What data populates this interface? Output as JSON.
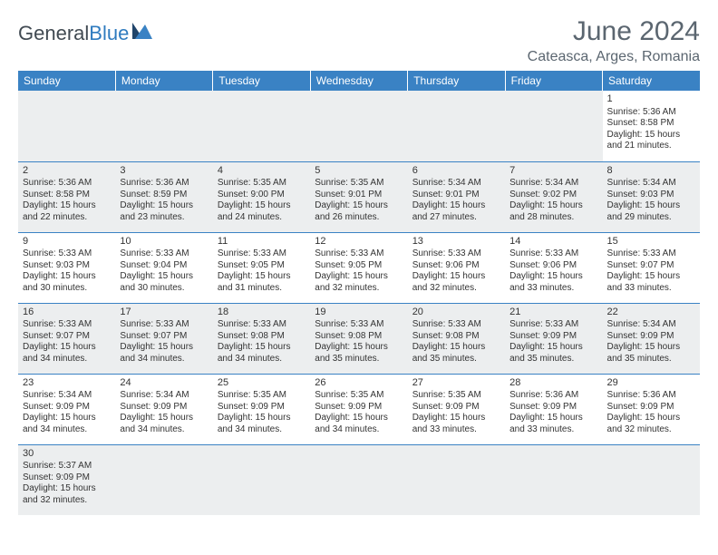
{
  "logo": {
    "text1": "General",
    "text2": "Blue"
  },
  "title": "June 2024",
  "location": "Cateasca, Arges, Romania",
  "colors": {
    "header_bg": "#3a82c4",
    "header_text": "#ffffff",
    "grey_row": "#eceeef",
    "border": "#3a82c4",
    "title_color": "#5b6670",
    "logo_grey": "#414a52",
    "logo_blue": "#2f7bbf"
  },
  "day_headers": [
    "Sunday",
    "Monday",
    "Tuesday",
    "Wednesday",
    "Thursday",
    "Friday",
    "Saturday"
  ],
  "weeks": [
    [
      null,
      null,
      null,
      null,
      null,
      null,
      {
        "n": "1",
        "sr": "5:36 AM",
        "ss": "8:58 PM",
        "dl": "15 hours and 21 minutes."
      }
    ],
    [
      {
        "n": "2",
        "sr": "5:36 AM",
        "ss": "8:58 PM",
        "dl": "15 hours and 22 minutes."
      },
      {
        "n": "3",
        "sr": "5:36 AM",
        "ss": "8:59 PM",
        "dl": "15 hours and 23 minutes."
      },
      {
        "n": "4",
        "sr": "5:35 AM",
        "ss": "9:00 PM",
        "dl": "15 hours and 24 minutes."
      },
      {
        "n": "5",
        "sr": "5:35 AM",
        "ss": "9:01 PM",
        "dl": "15 hours and 26 minutes."
      },
      {
        "n": "6",
        "sr": "5:34 AM",
        "ss": "9:01 PM",
        "dl": "15 hours and 27 minutes."
      },
      {
        "n": "7",
        "sr": "5:34 AM",
        "ss": "9:02 PM",
        "dl": "15 hours and 28 minutes."
      },
      {
        "n": "8",
        "sr": "5:34 AM",
        "ss": "9:03 PM",
        "dl": "15 hours and 29 minutes."
      }
    ],
    [
      {
        "n": "9",
        "sr": "5:33 AM",
        "ss": "9:03 PM",
        "dl": "15 hours and 30 minutes."
      },
      {
        "n": "10",
        "sr": "5:33 AM",
        "ss": "9:04 PM",
        "dl": "15 hours and 30 minutes."
      },
      {
        "n": "11",
        "sr": "5:33 AM",
        "ss": "9:05 PM",
        "dl": "15 hours and 31 minutes."
      },
      {
        "n": "12",
        "sr": "5:33 AM",
        "ss": "9:05 PM",
        "dl": "15 hours and 32 minutes."
      },
      {
        "n": "13",
        "sr": "5:33 AM",
        "ss": "9:06 PM",
        "dl": "15 hours and 32 minutes."
      },
      {
        "n": "14",
        "sr": "5:33 AM",
        "ss": "9:06 PM",
        "dl": "15 hours and 33 minutes."
      },
      {
        "n": "15",
        "sr": "5:33 AM",
        "ss": "9:07 PM",
        "dl": "15 hours and 33 minutes."
      }
    ],
    [
      {
        "n": "16",
        "sr": "5:33 AM",
        "ss": "9:07 PM",
        "dl": "15 hours and 34 minutes."
      },
      {
        "n": "17",
        "sr": "5:33 AM",
        "ss": "9:07 PM",
        "dl": "15 hours and 34 minutes."
      },
      {
        "n": "18",
        "sr": "5:33 AM",
        "ss": "9:08 PM",
        "dl": "15 hours and 34 minutes."
      },
      {
        "n": "19",
        "sr": "5:33 AM",
        "ss": "9:08 PM",
        "dl": "15 hours and 35 minutes."
      },
      {
        "n": "20",
        "sr": "5:33 AM",
        "ss": "9:08 PM",
        "dl": "15 hours and 35 minutes."
      },
      {
        "n": "21",
        "sr": "5:33 AM",
        "ss": "9:09 PM",
        "dl": "15 hours and 35 minutes."
      },
      {
        "n": "22",
        "sr": "5:34 AM",
        "ss": "9:09 PM",
        "dl": "15 hours and 35 minutes."
      }
    ],
    [
      {
        "n": "23",
        "sr": "5:34 AM",
        "ss": "9:09 PM",
        "dl": "15 hours and 34 minutes."
      },
      {
        "n": "24",
        "sr": "5:34 AM",
        "ss": "9:09 PM",
        "dl": "15 hours and 34 minutes."
      },
      {
        "n": "25",
        "sr": "5:35 AM",
        "ss": "9:09 PM",
        "dl": "15 hours and 34 minutes."
      },
      {
        "n": "26",
        "sr": "5:35 AM",
        "ss": "9:09 PM",
        "dl": "15 hours and 34 minutes."
      },
      {
        "n": "27",
        "sr": "5:35 AM",
        "ss": "9:09 PM",
        "dl": "15 hours and 33 minutes."
      },
      {
        "n": "28",
        "sr": "5:36 AM",
        "ss": "9:09 PM",
        "dl": "15 hours and 33 minutes."
      },
      {
        "n": "29",
        "sr": "5:36 AM",
        "ss": "9:09 PM",
        "dl": "15 hours and 32 minutes."
      }
    ],
    [
      {
        "n": "30",
        "sr": "5:37 AM",
        "ss": "9:09 PM",
        "dl": "15 hours and 32 minutes."
      },
      null,
      null,
      null,
      null,
      null,
      null
    ]
  ]
}
